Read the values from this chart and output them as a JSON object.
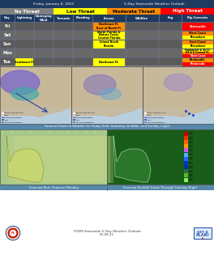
{
  "title_left": "Friday, January 8, 2021",
  "title_right": "5-Day Statewide Weather Outlook",
  "threat_levels": [
    "No Threat",
    "Low Threat",
    "Moderate Threat",
    "High Threat"
  ],
  "threat_colors": [
    "#808080",
    "#ffff00",
    "#ff8c00",
    "#ff0000"
  ],
  "threat_text_colors": [
    "#ffffff",
    "#000000",
    "#000000",
    "#ffffff"
  ],
  "col_headers": [
    "Day",
    "Lightning",
    "Damaging\nWind",
    "Tornado",
    "Flooding",
    "Freeze",
    "Wildfire",
    "Fog",
    "Rip Currents"
  ],
  "days": [
    "Fri",
    "Sat",
    "Sun",
    "Mon",
    "Tue"
  ],
  "header_bg": "#1e3a5f",
  "row_bg_even": "#5a5a5a",
  "row_bg_odd": "#686868",
  "freeze_fri": "Northeast FL\nRest of North FL",
  "freeze_fri_color": "#ff8c00",
  "freeze_sat_lines": [
    "North Florida &",
    "Nature Coast",
    "Central Florida"
  ],
  "freeze_sat_colors": [
    "#ffff00",
    "#ffff00",
    "#ffff00"
  ],
  "freeze_sun": "Inland North\nFlorida",
  "freeze_sun_color": "#ffff00",
  "freeze_tue": "Northeast FL",
  "freeze_tue_color": "#ffff00",
  "rip_fri": "Statewide",
  "rip_fri_color": "#ff0000",
  "rip_sat_lines": [
    "West Coast",
    "Elsewhere"
  ],
  "rip_sat_colors": [
    "#ff8c00",
    "#ffff00"
  ],
  "rip_sun_lines": [
    "East Coast",
    "Elsewhere"
  ],
  "rip_sun_colors": [
    "#ff8c00",
    "#ffff00"
  ],
  "rip_mon_lines": [
    "Panhandle & SE FL",
    "NE & E Central FL",
    "West Coast"
  ],
  "rip_mon_colors": [
    "#ffff00",
    "#ff8c00",
    "#ff0000"
  ],
  "rip_tue_lines": [
    "Panhandle",
    "Peninsula"
  ],
  "rip_tue_colors": [
    "#ff8c00",
    "#ff0000"
  ],
  "lightning_tue": "Southeast FL",
  "lightning_tue_color": "#ffff00",
  "map_caption": "Forecast Fronts & Weather for Friday (left), Saturday (middle), and Sunday (right)",
  "rain_caption": "Forecast Rain Chances Monday",
  "rainfall_caption": "Forecast Rainfall Totals Through Tuesday Night",
  "footer_text1": "FDEM Statewide 5-Day Weather Outlook",
  "footer_text2": "01.08.21",
  "bg_color": "#ffffff",
  "section_header_bg": "#5588aa",
  "map_bg": "#a8c4d8",
  "land_color": "#c8b89a",
  "legend_items": [
    [
      "Rain/Thunderstorms",
      "#6688bb"
    ],
    [
      "Rain",
      "#4466aa"
    ],
    [
      "Mixed Precipitation",
      "#9977cc"
    ],
    [
      "Snow",
      "#dddddd"
    ],
    [
      "Heavy Snow Possible",
      "#ffffff"
    ]
  ],
  "rainfall_legend_vals": [
    "3.00",
    "2.50",
    "2.00",
    "1.75",
    "1.50",
    "1.25",
    "1.00",
    "0.75",
    "0.50",
    "0.25",
    "0.10",
    "0.01"
  ],
  "rainfall_legend_colors": [
    "#cc0000",
    "#ee3300",
    "#ff6600",
    "#ff9900",
    "#cc55ff",
    "#55aaff",
    "#2266ff",
    "#0033cc",
    "#003399",
    "#336644",
    "#55bb33",
    "#88ee55"
  ]
}
